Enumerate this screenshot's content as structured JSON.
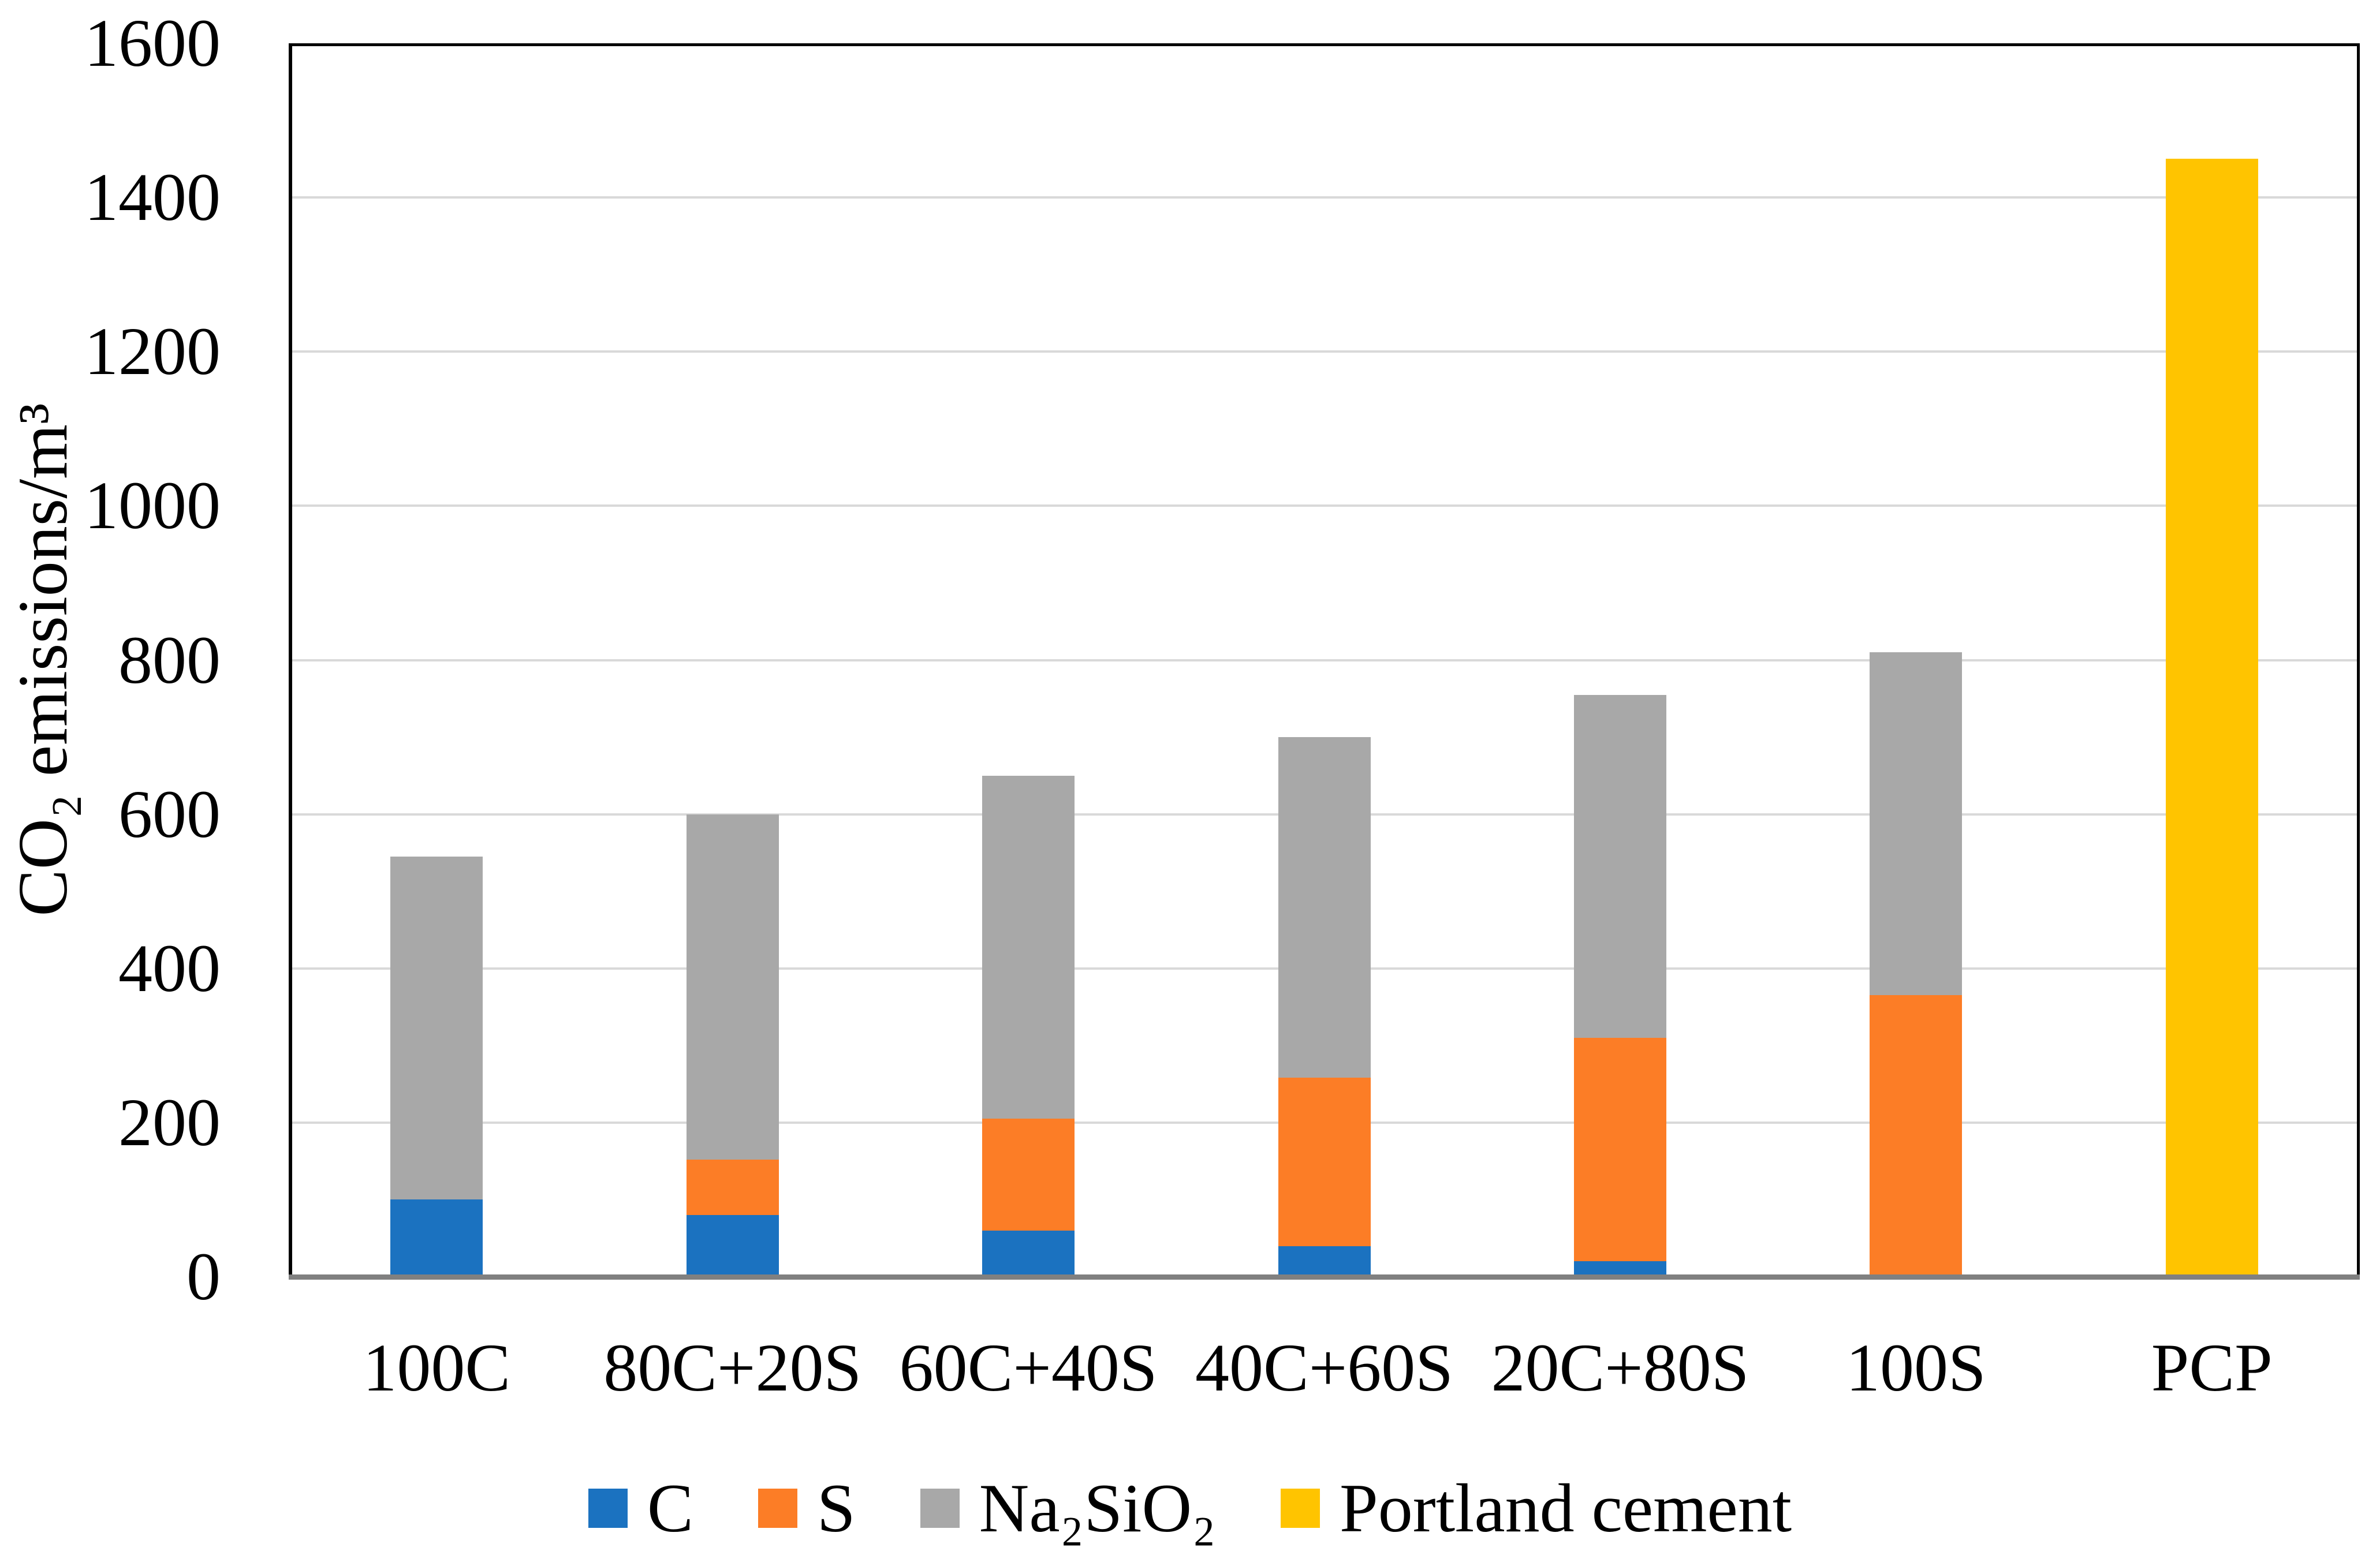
{
  "chart_data": {
    "type": "bar",
    "stacked": true,
    "title": "",
    "xlabel": "",
    "ylabel": "CO₂ emissions/m³",
    "ylim": [
      0,
      1600
    ],
    "ytick_step": 200,
    "ytick_labels": [
      "0",
      "200",
      "400",
      "600",
      "800",
      "1000",
      "1200",
      "1400",
      "1600"
    ],
    "grid": true,
    "legend_position": "bottom",
    "categories": [
      "100C",
      "80C+20S",
      "60C+40S",
      "40C+60S",
      "20C+80S",
      "100S",
      "PCP"
    ],
    "series": [
      {
        "name": "C",
        "color": "#1B72C0",
        "values": [
          100,
          80,
          60,
          40,
          20,
          0,
          0
        ]
      },
      {
        "name": "S",
        "color": "#FC7D26",
        "values": [
          0,
          72,
          145,
          218,
          290,
          365,
          0
        ]
      },
      {
        "name": "Na₂SiO₂",
        "color": "#A8A8A8",
        "values": [
          445,
          448,
          445,
          442,
          445,
          445,
          0
        ]
      },
      {
        "name": "Portland cement",
        "color": "#FFC400",
        "values": [
          0,
          0,
          0,
          0,
          0,
          0,
          1450
        ]
      }
    ],
    "stack_totals": [
      545,
      600,
      650,
      700,
      755,
      810,
      1450
    ]
  },
  "style": {
    "background": "#FFFFFF",
    "text_color": "#000000",
    "gridline_color": "#D9D9D9",
    "x_axis_line_color": "#808080",
    "plot_border_color": "#000000"
  }
}
